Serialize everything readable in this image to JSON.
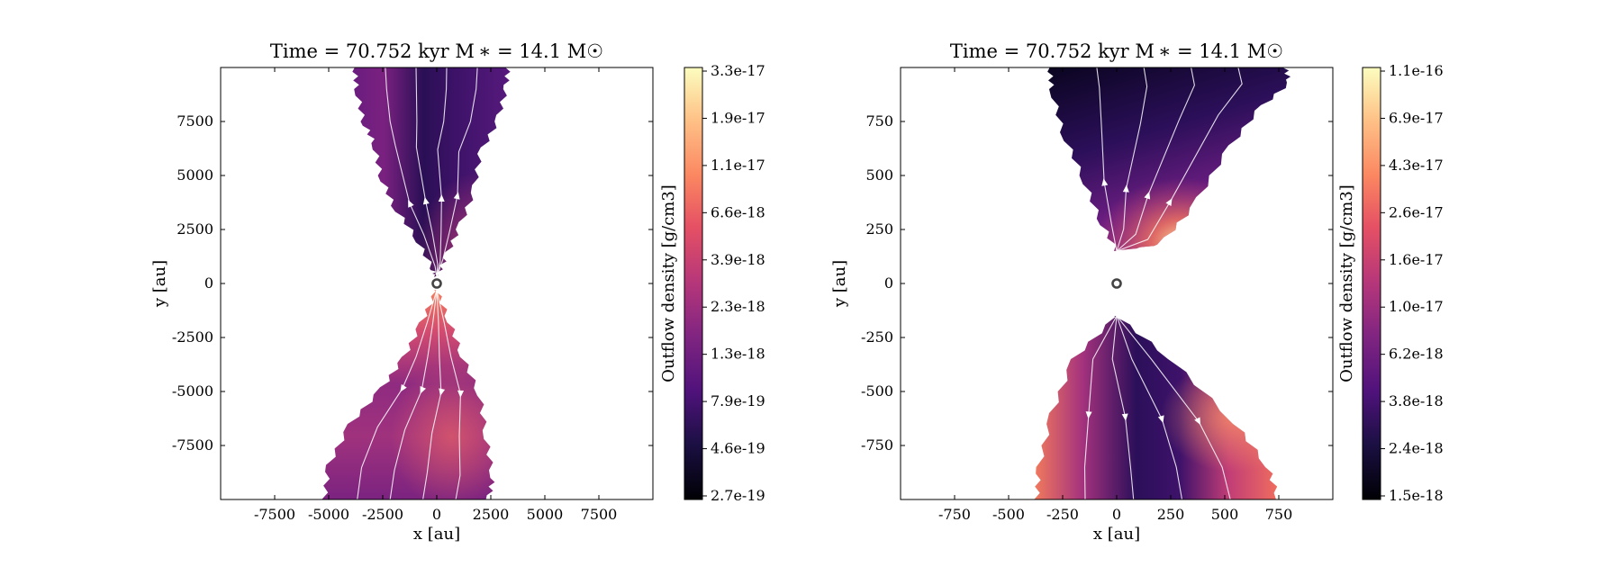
{
  "chart_data": [
    {
      "type": "heatmap",
      "title": "Time = 70.752 kyr    M$_*$ = 14.1 M$_\\odot$",
      "title_display": "Time = 70.752 kyr    M ∗ = 14.1 M☉",
      "xlabel": "x [au]",
      "ylabel": "y [au]",
      "xlim": [
        -10000,
        10000
      ],
      "ylim": [
        -10000,
        10000
      ],
      "xticks": [
        -7500,
        -5000,
        -2500,
        0,
        2500,
        5000,
        7500
      ],
      "xtick_labels": [
        "-7500",
        "-5000",
        "-2500",
        "0",
        "2500",
        "5000",
        "7500"
      ],
      "yticks": [
        7500,
        5000,
        2500,
        0,
        -2500,
        -5000,
        -7500
      ],
      "ytick_labels": [
        "7500",
        "5000",
        "2500",
        "0",
        "-2500",
        "-5000",
        "-7500"
      ],
      "grid": false,
      "colormap": "magma",
      "colorbar": {
        "label": "Outflow density [g/cm3]",
        "scale": "log",
        "range": [
          2.7e-19,
          3.3e-17
        ],
        "tick_labels": [
          "3.3e-17",
          "1.9e-17",
          "1.1e-17",
          "6.6e-18",
          "3.9e-18",
          "2.3e-18",
          "1.3e-18",
          "7.9e-19",
          "4.6e-19",
          "2.7e-19"
        ]
      },
      "star_marker": [
        0,
        0
      ],
      "regions": {
        "upper_outflow": {
          "left_edge": [
            [
              -3800,
              10000
            ],
            [
              -3700,
              9000
            ],
            [
              -3400,
              7500
            ],
            [
              -2900,
              6500
            ],
            [
              -2600,
              5000
            ],
            [
              -2000,
              3600
            ],
            [
              -1000,
              2200
            ],
            [
              -200,
              700
            ],
            [
              0,
              300
            ]
          ],
          "right_edge": [
            [
              3300,
              10000
            ],
            [
              3200,
              9000
            ],
            [
              2800,
              7500
            ],
            [
              2000,
              6000
            ],
            [
              1700,
              4200
            ],
            [
              1000,
              2500
            ],
            [
              400,
              1200
            ],
            [
              0,
              300
            ]
          ],
          "density_values": [
            [
              2e-18,
              1.5e-18
            ],
            [
              6e-19,
              1e-18
            ],
            [
              2e-18,
              2.5e-18
            ],
            [
              6e-18,
              8e-18
            ]
          ]
        },
        "lower_outflow": {
          "left_edge": [
            [
              0,
              -300
            ],
            [
              -700,
              -1800
            ],
            [
              -1500,
              -3400
            ],
            [
              -2500,
              -4800
            ],
            [
              -4000,
              -6500
            ],
            [
              -5000,
              -8400
            ],
            [
              -5200,
              -10000
            ]
          ],
          "right_edge": [
            [
              0,
              -300
            ],
            [
              600,
              -1800
            ],
            [
              1200,
              -3400
            ],
            [
              2000,
              -5200
            ],
            [
              2300,
              -7200
            ],
            [
              2600,
              -9000
            ],
            [
              2400,
              -10000
            ]
          ],
          "density_values": [
            [
              1.5e-17,
              8e-18
            ],
            [
              4e-18,
              3e-18
            ],
            [
              2e-18,
              3.5e-18
            ],
            [
              2e-18,
              6e-18
            ]
          ]
        }
      }
    },
    {
      "type": "heatmap",
      "title": "Time = 70.752 kyr    M$_*$ = 14.1 M$_\\odot$",
      "title_display": "Time = 70.752 kyr    M ∗ = 14.1 M☉",
      "xlabel": "x [au]",
      "ylabel": "y [au]",
      "xlim": [
        -1000,
        1000
      ],
      "ylim": [
        -1000,
        1000
      ],
      "xticks": [
        -750,
        -500,
        -250,
        0,
        250,
        500,
        750
      ],
      "xtick_labels": [
        "-750",
        "-500",
        "-250",
        "0",
        "250",
        "500",
        "750"
      ],
      "yticks": [
        750,
        500,
        250,
        0,
        -250,
        -500,
        -750
      ],
      "ytick_labels": [
        "750",
        "500",
        "250",
        "0",
        "-250",
        "-500",
        "-750"
      ],
      "grid": false,
      "colormap": "magma",
      "colorbar": {
        "label": "Outflow density [g/cm3]",
        "scale": "log",
        "range": [
          1.5e-18,
          1.1e-16
        ],
        "tick_labels": [
          "1.1e-16",
          "6.9e-17",
          "4.3e-17",
          "2.6e-17",
          "1.6e-17",
          "1.0e-17",
          "6.2e-18",
          "3.8e-18",
          "2.4e-18",
          "1.5e-18"
        ]
      },
      "star_marker": [
        0,
        0
      ],
      "regions": {
        "upper_outflow": {
          "left_edge": [
            [
              -310,
              1000
            ],
            [
              -300,
              900
            ],
            [
              -250,
              700
            ],
            [
              -160,
              500
            ],
            [
              -80,
              300
            ],
            [
              0,
              150
            ]
          ],
          "right_edge": [
            [
              780,
              1000
            ],
            [
              800,
              930
            ],
            [
              650,
              800
            ],
            [
              500,
              600
            ],
            [
              350,
              350
            ],
            [
              200,
              180
            ],
            [
              0,
              150
            ]
          ],
          "density_values": [
            [
              2e-18,
              1.6e-18
            ],
            [
              3e-18,
              5e-18
            ],
            [
              4e-18,
              1e-17
            ],
            [
              2e-17,
              9e-17
            ]
          ]
        },
        "lower_outflow": {
          "left_edge": [
            [
              0,
              -150
            ],
            [
              -200,
              -350
            ],
            [
              -300,
              -600
            ],
            [
              -360,
              -850
            ],
            [
              -370,
              -1000
            ]
          ],
          "right_edge": [
            [
              0,
              -150
            ],
            [
              250,
              -350
            ],
            [
              550,
              -650
            ],
            [
              700,
              -850
            ],
            [
              750,
              -1000
            ]
          ],
          "density_values": [
            [
              4e-18,
              2e-17
            ],
            [
              4e-18,
              2.5e-17
            ],
            [
              3e-18,
              4e-17
            ],
            [
              3e-17,
              5e-17
            ]
          ]
        }
      }
    }
  ]
}
